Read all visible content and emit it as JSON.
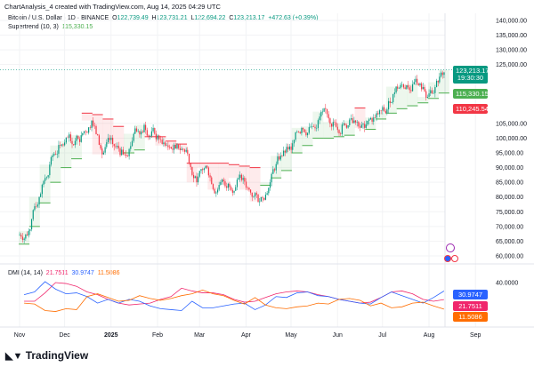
{
  "header": {
    "title": "ChartAnalysis_4 created with TradingView.com, Aug 14, 2025 04:29 UTC"
  },
  "legend": {
    "symbol": "Bitcoin / U.S. Dollar · 1D · BINANCE",
    "o_label": "O",
    "o": "122,739.49",
    "h_label": "H",
    "h": "123,731.21",
    "l_label": "L",
    "l": "122,694.22",
    "c_label": "C",
    "c": "123,213.17",
    "change": "+472.63 (+0.39%)",
    "supertrend_label": "Supertrend (10, 3)",
    "supertrend_value": "115,330.15"
  },
  "badges": {
    "price": "123,213.17",
    "countdown": "19:30:30",
    "supertrend": "115,330.15",
    "red": "110,245.54",
    "dmi_blue": "30.9747",
    "dmi_pink": "21.7511",
    "dmi_orange": "11.5086"
  },
  "dmi_legend": {
    "label": "DMI (14, 14)",
    "v1": "21.7511",
    "v2": "30.9747",
    "v3": "11.5086"
  },
  "logo": "TradingView",
  "colors": {
    "up": "#089981",
    "down": "#f23645",
    "st_up": "#4caf50",
    "st_down": "#f23645",
    "dmi_pink": "#f0266c",
    "dmi_blue": "#2962ff",
    "dmi_orange": "#ff6d00"
  },
  "chart_data": [
    {
      "type": "candlestick",
      "price_ticks": [
        "140,000.00",
        "135,000.00",
        "130,000.00",
        "125,000.00",
        "105,000.00",
        "100,000.00",
        "95,000.00",
        "90,000.00",
        "85,000.00",
        "80,000.00",
        "75,000.00",
        "70,000.00",
        "65,000.00",
        "60,000.00"
      ],
      "ylim": [
        60000,
        140000
      ],
      "x_ticks": [
        "Nov",
        "Dec",
        "2025",
        "Feb",
        "Mar",
        "Apr",
        "May",
        "Jun",
        "Jul",
        "Aug",
        "Sep"
      ],
      "weeks": [
        "2024-11-04",
        "2024-11-11",
        "2024-11-18",
        "2024-11-25",
        "2024-12-02",
        "2024-12-09",
        "2024-12-16",
        "2024-12-23",
        "2024-12-30",
        "2025-01-06",
        "2025-01-13",
        "2025-01-20",
        "2025-01-27",
        "2025-02-03",
        "2025-02-10",
        "2025-02-17",
        "2025-02-24",
        "2025-03-03",
        "2025-03-10",
        "2025-03-17",
        "2025-03-24",
        "2025-03-31",
        "2025-04-07",
        "2025-04-14",
        "2025-04-21",
        "2025-04-28",
        "2025-05-05",
        "2025-05-12",
        "2025-05-19",
        "2025-05-26",
        "2025-06-02",
        "2025-06-09",
        "2025-06-16",
        "2025-06-23",
        "2025-06-30",
        "2025-07-07",
        "2025-07-14",
        "2025-07-21",
        "2025-07-28",
        "2025-08-04",
        "2025-08-11"
      ],
      "close": [
        68500,
        80000,
        91000,
        97500,
        99000,
        101000,
        106000,
        94500,
        98000,
        94500,
        101500,
        104500,
        101500,
        97500,
        96500,
        96000,
        85000,
        90000,
        82500,
        84500,
        86500,
        82500,
        78500,
        85000,
        94000,
        96000,
        103500,
        104000,
        109000,
        105500,
        105000,
        106000,
        103500,
        107000,
        108500,
        117500,
        118000,
        118500,
        114000,
        119000,
        123213
      ],
      "supertrend": [
        64000,
        70000,
        78000,
        85000,
        90000,
        93000,
        108500,
        108000,
        106500,
        104000,
        95000,
        96000,
        100500,
        100500,
        99000,
        98000,
        91500,
        91500,
        91500,
        91500,
        91000,
        90500,
        90000,
        84000,
        86500,
        89000,
        95000,
        97500,
        100000,
        100000,
        100500,
        101000,
        110245,
        103000,
        106500,
        108500,
        110000,
        111000,
        112000,
        113500,
        115330
      ],
      "supertrend_dir": [
        "up",
        "up",
        "up",
        "up",
        "up",
        "up",
        "down",
        "down",
        "down",
        "down",
        "up",
        "up",
        "down",
        "down",
        "down",
        "down",
        "down",
        "down",
        "down",
        "down",
        "down",
        "down",
        "down",
        "up",
        "up",
        "up",
        "up",
        "up",
        "up",
        "up",
        "up",
        "up",
        "down",
        "up",
        "up",
        "up",
        "up",
        "up",
        "up",
        "up",
        "up"
      ],
      "dmi": {
        "ylim": [
          0,
          45
        ],
        "tick": "40.0000",
        "pink": [
          20,
          20,
          29,
          40,
          39,
          36,
          30,
          27,
          22,
          18,
          16,
          17,
          18,
          22,
          25,
          34,
          31,
          29,
          29,
          27,
          22,
          19,
          20,
          24,
          28,
          30,
          31,
          30,
          27,
          25,
          22,
          20,
          18,
          19,
          24,
          30,
          31,
          28,
          22,
          20,
          21.75
        ],
        "blue": [
          27,
          30,
          41,
          33,
          28,
          29,
          25,
          18,
          22,
          18,
          22,
          20,
          15,
          12,
          11,
          10,
          20,
          13,
          13,
          15,
          17,
          18,
          11,
          16,
          25,
          24,
          29,
          30,
          26,
          25,
          22,
          20,
          18,
          17,
          24,
          30,
          26,
          22,
          18,
          24,
          30.97
        ],
        "orange": [
          18,
          17,
          10,
          9,
          12,
          11,
          25,
          28,
          24,
          20,
          21,
          26,
          23,
          21,
          23,
          26,
          28,
          32,
          28,
          26,
          21,
          17,
          24,
          16,
          13,
          12,
          14,
          15,
          18,
          17,
          22,
          23,
          21,
          15,
          18,
          13,
          14,
          18,
          19,
          15,
          11.51
        ]
      }
    }
  ]
}
